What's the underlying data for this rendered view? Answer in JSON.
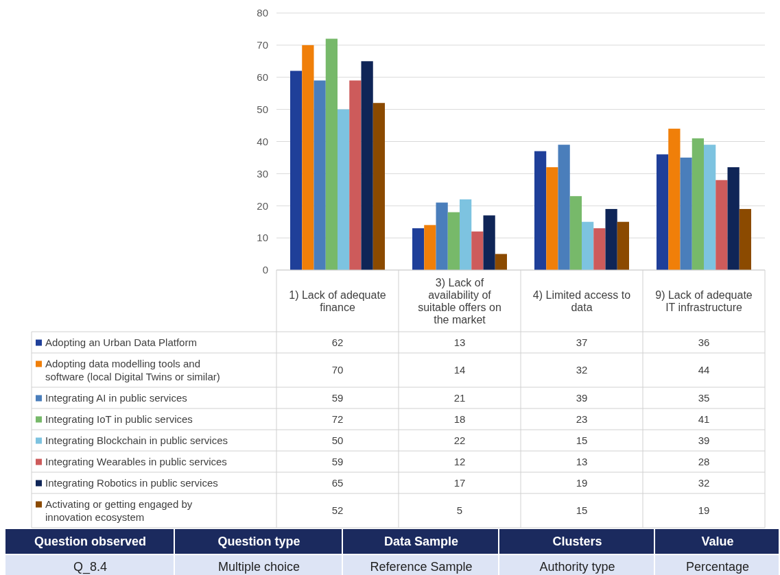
{
  "chart_data": {
    "type": "bar",
    "categories": [
      "1) Lack of adequate finance",
      "3) Lack of availability of suitable offers on the market",
      "4) Limited access to data",
      "9) Lack of adequate IT infrastructure"
    ],
    "series": [
      {
        "name": "Adopting an Urban Data Platform",
        "color": "#1f3f99",
        "values": [
          62,
          13,
          37,
          36
        ]
      },
      {
        "name": "Adopting data modelling tools and software (local Digital Twins or similar)",
        "color": "#f07f09",
        "values": [
          70,
          14,
          32,
          44
        ]
      },
      {
        "name": "Integrating AI in public services",
        "color": "#4a7ebb",
        "values": [
          59,
          21,
          39,
          35
        ]
      },
      {
        "name": "Integrating IoT in public services",
        "color": "#77b96a",
        "values": [
          72,
          18,
          23,
          41
        ]
      },
      {
        "name": "Integrating Blockchain in public services",
        "color": "#7dc3e0",
        "values": [
          50,
          22,
          15,
          39
        ]
      },
      {
        "name": "Integrating Wearables in public services",
        "color": "#cd5b5b",
        "values": [
          59,
          12,
          13,
          28
        ]
      },
      {
        "name": "Integrating Robotics in public services",
        "color": "#0f2557",
        "values": [
          65,
          17,
          19,
          32
        ]
      },
      {
        "name": "Activating or getting engaged by innovation ecosystem",
        "color": "#8b4a00",
        "values": [
          52,
          5,
          15,
          19
        ]
      }
    ],
    "ylim": [
      0,
      80
    ],
    "yticks": [
      0,
      10,
      20,
      30,
      40,
      50,
      60,
      70,
      80
    ],
    "grid": "y",
    "legend": "bottom",
    "data_labels": true,
    "annotations": [
      "Question observed",
      "Question type",
      "Data Sample",
      "Clusters",
      "Value",
      "Q_8.4",
      "Multiple choice",
      "Reference Sample",
      "Authority type",
      "Percentage"
    ]
  }
}
